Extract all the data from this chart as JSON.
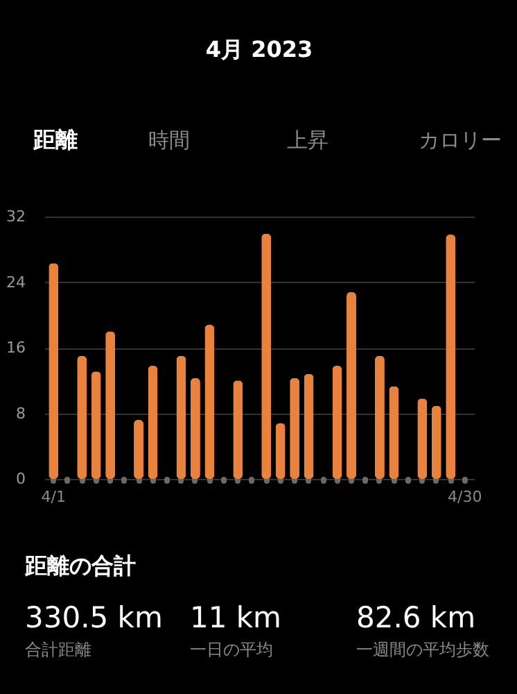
{
  "chart_data": {
    "type": "bar",
    "title": "4月 2023",
    "categories": [
      "4/1",
      null,
      null,
      null,
      null,
      null,
      null,
      null,
      null,
      null,
      null,
      null,
      null,
      null,
      null,
      null,
      null,
      null,
      null,
      null,
      null,
      null,
      null,
      null,
      null,
      null,
      null,
      null,
      null,
      "4/30"
    ],
    "values": [
      26.3,
      null,
      15.0,
      13.1,
      18.0,
      null,
      7.2,
      13.8,
      null,
      15.0,
      12.3,
      18.8,
      null,
      12.0,
      null,
      29.9,
      6.8,
      12.3,
      12.8,
      null,
      13.8,
      22.8,
      null,
      15.0,
      11.3,
      null,
      9.8,
      8.9,
      29.8,
      null
    ],
    "color": "#e8823c",
    "ylim": [
      0,
      32
    ],
    "yticks": [
      0,
      8,
      16,
      24,
      32
    ],
    "grid": "y",
    "annotations": [
      "距離",
      "時間",
      "上昇",
      "カロリー",
      "距離の合計",
      "330.5 km",
      "合計距離",
      "11 km",
      "一日の平均",
      "82.6 km",
      "一週間の平均歩数"
    ]
  }
}
